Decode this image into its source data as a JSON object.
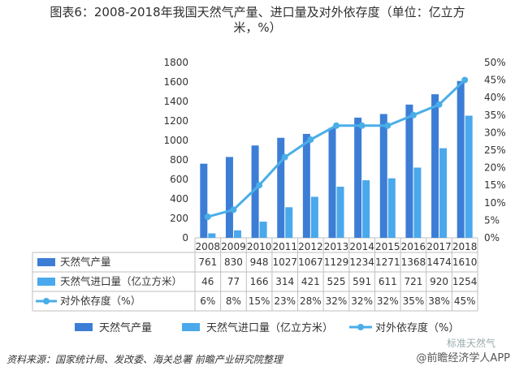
{
  "title_line1": "图表6：2008-2018年我国天然气产量、进口量及对外依存度（单位：亿立方",
  "title_line2": "米，%）",
  "source": "资料来源：国家统计局、发改委、海关总署 前瞻产业研究院整理",
  "watermark_small": "标准天然气",
  "watermark": "@前瞻经济学人APP",
  "colors": {
    "production": "#3c7ed6",
    "imports": "#4aa8ec",
    "dependency": "#49aee8"
  },
  "chart_data": {
    "type": "bar",
    "categories": [
      "2008",
      "2009",
      "2010",
      "2011",
      "2012",
      "2013",
      "2014",
      "2015",
      "2016",
      "2017",
      "2018"
    ],
    "series": [
      {
        "name": "天然气产量",
        "values": [
          761,
          830,
          948,
          1027,
          1067,
          1129,
          1234,
          1271,
          1368,
          1474,
          1610
        ],
        "axis": "left",
        "kind": "bar"
      },
      {
        "name": "天然气进口量（亿立方米）",
        "values": [
          46,
          77,
          166,
          314,
          421,
          525,
          591,
          611,
          721,
          920,
          1254
        ],
        "axis": "left",
        "kind": "bar"
      },
      {
        "name": "对外依存度（%）",
        "values": [
          6,
          8,
          15,
          23,
          28,
          32,
          32,
          32,
          35,
          38,
          45
        ],
        "axis": "right",
        "kind": "line"
      }
    ],
    "table_labels": [
      "天然气产量",
      "天然气进口量（亿立方米）",
      "对外依存度（%）"
    ],
    "table_values_pct": [
      "6%",
      "8%",
      "15%",
      "23%",
      "28%",
      "32%",
      "32%",
      "32%",
      "35%",
      "38%",
      "45%"
    ],
    "ylim_left": [
      0,
      1800
    ],
    "ylim_right": [
      0,
      50
    ],
    "left_ticks": [
      "0",
      "200",
      "400",
      "600",
      "800",
      "1000",
      "1200",
      "1400",
      "1600",
      "1800"
    ],
    "right_ticks": [
      "0%",
      "5%",
      "10%",
      "15%",
      "20%",
      "25%",
      "30%",
      "35%",
      "40%",
      "45%",
      "50%"
    ],
    "legend": [
      "天然气产量",
      "天然气进口量（亿立方米）",
      "对外依存度（%）"
    ],
    "legend_position": "bottom",
    "grid": false
  }
}
